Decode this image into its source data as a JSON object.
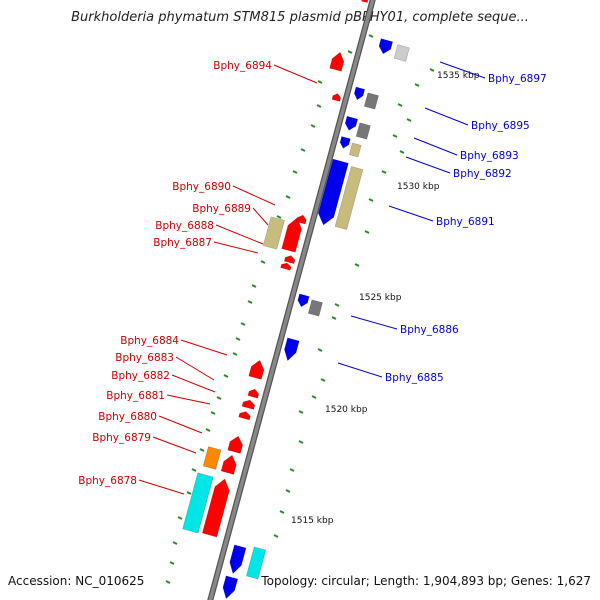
{
  "title": "Burkholderia phymatum STM815 plasmid pBPHY01, complete seque...",
  "footer": {
    "accession": "Accession: NC_010625",
    "summary": "Topology: circular; Length: 1,904,893 bp; Genes: 1,627"
  },
  "colors": {
    "backbone": "#888888",
    "backbone_edge": "#555555",
    "tick": "#2a8a2a",
    "forward_label": "#0000cc",
    "reverse_label": "#cc0000",
    "red": "#ff0000",
    "blue": "#0000ee",
    "gray": "#777777",
    "lightgray": "#cccccc",
    "tan": "#c8bb80",
    "orange": "#ff8800",
    "cyan": "#00e6e6"
  },
  "scale_labels": [
    "1535 kbp",
    "1530 kbp",
    "1525 kbp",
    "1520 kbp",
    "1515 kbp"
  ],
  "forward_genes": [
    {
      "label": "Bphy_6897",
      "color": "blue"
    },
    {
      "label": "Bphy_6895",
      "color": "blue"
    },
    {
      "label": "Bphy_6893",
      "color": "blue"
    },
    {
      "label": "Bphy_6892",
      "color": "blue"
    },
    {
      "label": "Bphy_6891",
      "color": "blue"
    },
    {
      "label": "Bphy_6886",
      "color": "blue"
    },
    {
      "label": "Bphy_6885",
      "color": "blue"
    }
  ],
  "reverse_genes": [
    {
      "label": "Bphy_6894",
      "color": "red"
    },
    {
      "label": "Bphy_6890",
      "color": "red"
    },
    {
      "label": "Bphy_6889",
      "color": "red"
    },
    {
      "label": "Bphy_6888",
      "color": "red"
    },
    {
      "label": "Bphy_6887",
      "color": "red"
    },
    {
      "label": "Bphy_6884",
      "color": "red"
    },
    {
      "label": "Bphy_6883",
      "color": "red"
    },
    {
      "label": "Bphy_6882",
      "color": "red"
    },
    {
      "label": "Bphy_6881",
      "color": "red"
    },
    {
      "label": "Bphy_6880",
      "color": "red"
    },
    {
      "label": "Bphy_6879",
      "color": "red"
    },
    {
      "label": "Bphy_6878",
      "color": "red"
    }
  ]
}
